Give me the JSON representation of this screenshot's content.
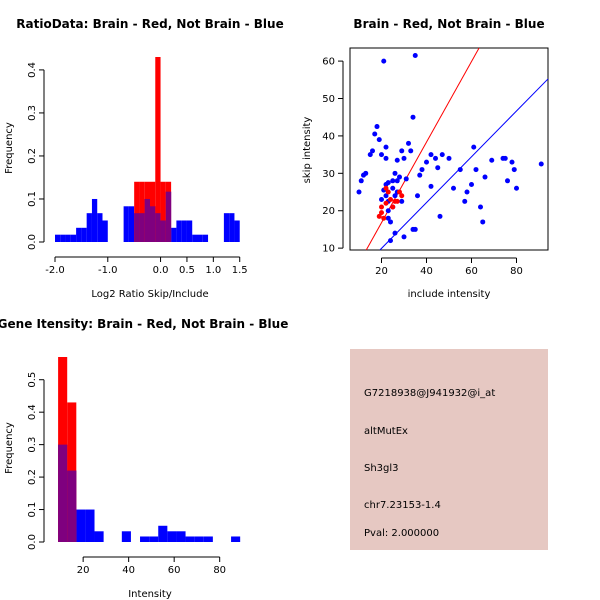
{
  "colors": {
    "brain": "#ff0000",
    "not_brain": "#0000ff",
    "overlap": "#7f007f",
    "info_bg": "#e6c8c2",
    "pval": "#b00000"
  },
  "info_panel": {
    "probe_id": "G7218938@J941932@i_at",
    "event_type": "altMutEx",
    "gene": "Sh3gl3",
    "location": "chr7.23153-1.4",
    "pval": "Pval: 2.000000"
  },
  "chart_data": [
    {
      "id": "ratio",
      "type": "histogram",
      "title": "RatioData: Brain - Red, Not Brain - Blue",
      "xlabel": "Log2 Ratio Skip/Include",
      "ylabel": "Frequency",
      "xlim": [
        -2.0,
        1.6
      ],
      "ylim": [
        0,
        0.43
      ],
      "xticks": [
        -2.0,
        -1.0,
        0.0,
        0.5,
        1.0,
        1.5
      ],
      "xtick_labels": [
        "-2.0",
        "-1.0",
        "0.0",
        "0.5",
        "1.0",
        "1.5"
      ],
      "yticks": [
        0,
        0.1,
        0.2,
        0.3,
        0.4
      ],
      "ytick_labels": [
        "0.0",
        "0.1",
        "0.2",
        "0.3",
        "0.4"
      ],
      "bin_width": 0.1,
      "series": [
        {
          "name": "Brain",
          "color": "red",
          "bins": [
            [
              -0.5,
              0.14
            ],
            [
              -0.4,
              0.14
            ],
            [
              -0.3,
              0.14
            ],
            [
              -0.2,
              0.14
            ],
            [
              -0.1,
              0.43
            ],
            [
              0.0,
              0.14
            ],
            [
              0.1,
              0.14
            ]
          ]
        },
        {
          "name": "Not Brain",
          "color": "blue",
          "bins": [
            [
              -2.0,
              0.017
            ],
            [
              -1.9,
              0.017
            ],
            [
              -1.8,
              0.017
            ],
            [
              -1.7,
              0.017
            ],
            [
              -1.6,
              0.033
            ],
            [
              -1.5,
              0.033
            ],
            [
              -1.4,
              0.067
            ],
            [
              -1.3,
              0.1
            ],
            [
              -1.2,
              0.067
            ],
            [
              -1.1,
              0.05
            ],
            [
              -0.7,
              0.083
            ],
            [
              -0.6,
              0.083
            ],
            [
              -0.5,
              0.067
            ],
            [
              -0.4,
              0.067
            ],
            [
              -0.3,
              0.1
            ],
            [
              -0.2,
              0.083
            ],
            [
              -0.1,
              0.067
            ],
            [
              0.0,
              0.05
            ],
            [
              0.1,
              0.117
            ],
            [
              0.2,
              0.033
            ],
            [
              0.3,
              0.05
            ],
            [
              0.4,
              0.05
            ],
            [
              0.5,
              0.05
            ],
            [
              0.6,
              0.017
            ],
            [
              0.7,
              0.017
            ],
            [
              0.8,
              0.017
            ],
            [
              1.2,
              0.067
            ],
            [
              1.3,
              0.067
            ],
            [
              1.4,
              0.05
            ]
          ]
        }
      ]
    },
    {
      "id": "scatter",
      "type": "scatter",
      "title": "Brain - Red, Not Brain - Blue",
      "xlabel": "include intensity",
      "ylabel": "skip intensity",
      "xlim": [
        6,
        94
      ],
      "ylim": [
        9.5,
        63.5
      ],
      "xticks": [
        20,
        40,
        60,
        80
      ],
      "yticks": [
        10,
        20,
        30,
        40,
        50,
        60
      ],
      "lines": [
        {
          "name": "Brain fit",
          "color": "red",
          "intercept": -4.74,
          "slope": 1.077
        },
        {
          "name": "Not Brain fit",
          "color": "blue",
          "intercept": -2.3,
          "slope": 0.612
        }
      ],
      "series": [
        {
          "name": "Brain",
          "color": "red",
          "points": [
            [
              19,
              18.5
            ],
            [
              20,
              19.5
            ],
            [
              21,
              18
            ],
            [
              22,
              22
            ],
            [
              23,
              25
            ],
            [
              24,
              23
            ],
            [
              25,
              21
            ],
            [
              26,
              22.5
            ],
            [
              27,
              22.5
            ],
            [
              28,
              25
            ],
            [
              29,
              24
            ],
            [
              22,
              26
            ],
            [
              20,
              21
            ]
          ]
        },
        {
          "name": "Not Brain",
          "color": "blue",
          "points": [
            [
              10,
              25
            ],
            [
              11,
              28
            ],
            [
              12,
              29.5
            ],
            [
              13,
              30
            ],
            [
              15,
              35
            ],
            [
              16,
              36
            ],
            [
              17,
              40.5
            ],
            [
              18,
              42.5
            ],
            [
              19,
              39
            ],
            [
              20,
              35
            ],
            [
              21,
              60
            ],
            [
              22,
              37
            ],
            [
              22,
              34
            ],
            [
              21,
              25.5
            ],
            [
              22,
              27
            ],
            [
              23,
              27.5
            ],
            [
              23,
              18
            ],
            [
              24,
              17
            ],
            [
              23,
              20
            ],
            [
              25,
              21
            ],
            [
              25,
              28
            ],
            [
              26,
              24
            ],
            [
              26,
              30
            ],
            [
              27,
              25
            ],
            [
              27,
              33.5
            ],
            [
              28,
              29
            ],
            [
              29,
              36
            ],
            [
              30,
              34
            ],
            [
              31,
              28.5
            ],
            [
              32,
              38
            ],
            [
              33,
              36
            ],
            [
              34,
              45
            ],
            [
              34,
              15
            ],
            [
              35,
              61.5
            ],
            [
              36,
              24
            ],
            [
              37,
              29.5
            ],
            [
              38,
              31
            ],
            [
              40,
              33
            ],
            [
              42,
              35
            ],
            [
              42,
              26.5
            ],
            [
              44,
              34
            ],
            [
              45,
              31.5
            ],
            [
              46,
              18.5
            ],
            [
              47,
              35
            ],
            [
              50,
              34
            ],
            [
              52,
              26
            ],
            [
              55,
              31
            ],
            [
              57,
              22.5
            ],
            [
              58,
              25
            ],
            [
              60,
              27
            ],
            [
              61,
              37
            ],
            [
              62,
              31
            ],
            [
              64,
              21
            ],
            [
              65,
              17
            ],
            [
              66,
              29
            ],
            [
              69,
              33.5
            ],
            [
              74,
              34
            ],
            [
              75,
              34
            ],
            [
              76,
              28
            ],
            [
              78,
              33
            ],
            [
              79,
              31
            ],
            [
              80,
              26
            ],
            [
              91,
              32.5
            ],
            [
              24,
              12
            ],
            [
              26,
              14
            ],
            [
              30,
              13
            ],
            [
              35,
              15
            ],
            [
              20,
              23
            ],
            [
              22,
              24
            ],
            [
              23,
              22.5
            ],
            [
              25,
              26
            ],
            [
              27,
              28
            ],
            [
              29,
              22.5
            ]
          ]
        }
      ]
    },
    {
      "id": "intensity",
      "type": "histogram",
      "title": "Gene Itensity: Brain - Red, Not Brain - Blue",
      "xlabel": "Intensity",
      "ylabel": "Frequency",
      "xlim": [
        5,
        92
      ],
      "ylim": [
        0,
        0.57
      ],
      "xticks": [
        20,
        40,
        60,
        80
      ],
      "yticks": [
        0,
        0.1,
        0.2,
        0.3,
        0.4,
        0.5
      ],
      "ytick_labels": [
        "0.0",
        "0.1",
        "0.2",
        "0.3",
        "0.4",
        "0.5"
      ],
      "bin_width": 4,
      "series": [
        {
          "name": "Brain",
          "color": "red",
          "bins": [
            [
              9,
              0.57
            ],
            [
              13,
              0.43
            ]
          ]
        },
        {
          "name": "Not Brain",
          "color": "blue",
          "bins": [
            [
              9,
              0.3
            ],
            [
              13,
              0.22
            ],
            [
              17,
              0.1
            ],
            [
              21,
              0.1
            ],
            [
              25,
              0.033
            ],
            [
              37,
              0.033
            ],
            [
              45,
              0.017
            ],
            [
              49,
              0.017
            ],
            [
              53,
              0.05
            ],
            [
              57,
              0.033
            ],
            [
              61,
              0.033
            ],
            [
              65,
              0.017
            ],
            [
              69,
              0.017
            ],
            [
              73,
              0.017
            ],
            [
              85,
              0.017
            ]
          ]
        }
      ]
    }
  ]
}
